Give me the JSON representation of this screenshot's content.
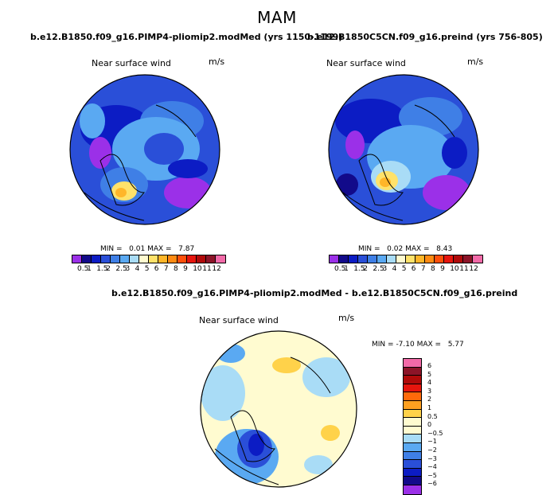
{
  "season": "MAM",
  "panel1": {
    "case_title": "b.e12.B1850.f09_g16.PIMP4-pliomip2.modMed (yrs 1150-1199)",
    "variable": "Near surface wind",
    "units": "m/s",
    "min_label": "MIN =",
    "min_value": "0.01",
    "max_label": "MAX =",
    "max_value": "7.87"
  },
  "panel2": {
    "case_title": "b.e12.B1850C5CN.f09_g16.preind (yrs 756-805)",
    "variable": "Near surface wind",
    "units": "m/s",
    "min_label": "MIN =",
    "min_value": "0.02",
    "max_label": "MAX =",
    "max_value": "8.43"
  },
  "panel3": {
    "case_title": "b.e12.B1850.f09_g16.PIMP4-pliomip2.modMed - b.e12.B1850C5CN.f09_g16.preind",
    "variable": "Near surface wind",
    "units": "m/s",
    "min_label": "MIN =",
    "min_value": "-7.10",
    "max_label": "MAX =",
    "max_value": "5.77"
  },
  "wind_colorbar": {
    "tick_labels": [
      "0.5",
      "1",
      "1.5",
      "2",
      "2.5",
      "3",
      "4",
      "5",
      "6",
      "7",
      "8",
      "9",
      "10",
      "11",
      "12"
    ],
    "colors": [
      "#9b30e8",
      "#120a8a",
      "#0c1cc4",
      "#2a4fd8",
      "#3f7fe6",
      "#5aa9f2",
      "#a9dcf6",
      "#fffbd0",
      "#ffe26a",
      "#ffb629",
      "#ff8a12",
      "#ff4f0a",
      "#e6150d",
      "#b00a0a",
      "#8c1428",
      "#f26aa8"
    ]
  },
  "diff_colorbar": {
    "tick_labels": [
      "6",
      "5",
      "4",
      "3",
      "2",
      "1",
      "0.5",
      "0",
      "−0.5",
      "−1",
      "−2",
      "−3",
      "−4",
      "−5",
      "−6"
    ],
    "colors": [
      "#f26aa8",
      "#8c1428",
      "#b00a0a",
      "#e6150d",
      "#ff6a0a",
      "#ffa020",
      "#ffd24a",
      "#fffbd0",
      "#fffbd0",
      "#a9dcf6",
      "#5aa9f2",
      "#3f7fe6",
      "#2a4fd8",
      "#0c1cc4",
      "#120a8a",
      "#9b30e8"
    ]
  }
}
